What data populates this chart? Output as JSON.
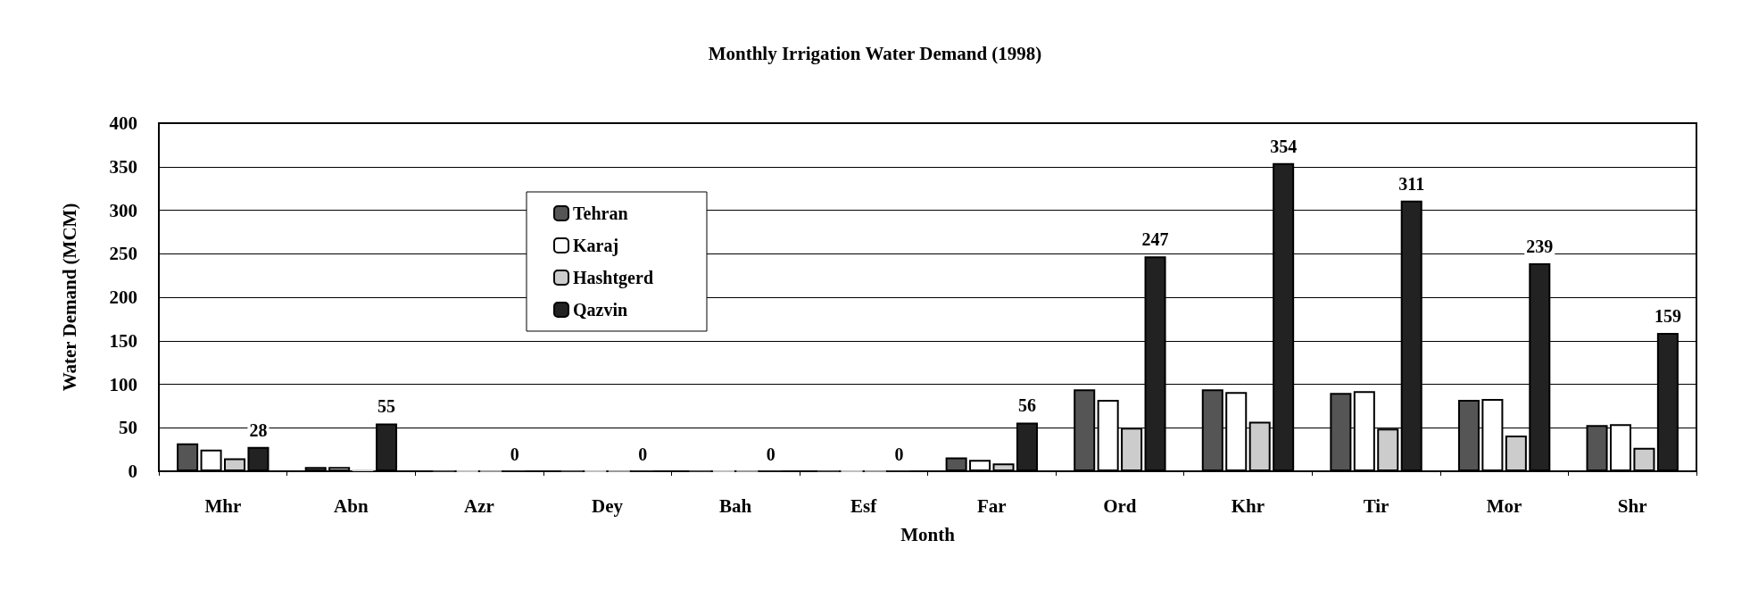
{
  "chart_data": {
    "type": "bar",
    "title": "Monthly Irrigation Water Demand (1998)",
    "xlabel": "Month",
    "ylabel": "Water Demand (MCM)",
    "categories": [
      "Mhr",
      "Abn",
      "Azr",
      "Dey",
      "Bah",
      "Esf",
      "Far",
      "Ord",
      "Khr",
      "Tir",
      "Mor",
      "Shr"
    ],
    "series": [
      {
        "name": "Tehran",
        "color": "#555555",
        "values": [
          32,
          5,
          0,
          0,
          0,
          0,
          16,
          94,
          94,
          90,
          82,
          53
        ]
      },
      {
        "name": "Karaj",
        "color": "#ffffff",
        "values": [
          25,
          5,
          0,
          0,
          0,
          0,
          13,
          82,
          91,
          92,
          83,
          54
        ]
      },
      {
        "name": "Hashtgerd",
        "color": "#cccccc",
        "values": [
          15,
          2,
          0,
          0,
          0,
          0,
          9,
          50,
          57,
          49,
          41,
          27
        ]
      },
      {
        "name": "Qazvin",
        "color": "#222222",
        "values": [
          28,
          55,
          0,
          0,
          0,
          0,
          56,
          247,
          354,
          311,
          239,
          159
        ],
        "value_labels": [
          "28",
          "55",
          "0",
          "0",
          "0",
          "0",
          "56",
          "247",
          "354",
          "311",
          "239",
          "159"
        ]
      }
    ],
    "ylim": [
      0,
      400
    ],
    "yticks": [
      0,
      50,
      100,
      150,
      200,
      250,
      300,
      350,
      400
    ],
    "grid": "y",
    "legend": "top left"
  }
}
